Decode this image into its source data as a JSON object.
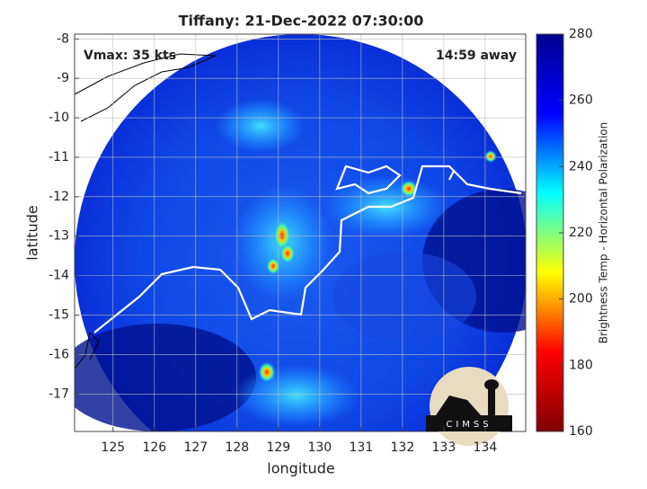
{
  "chart_data": {
    "type": "map",
    "title": "Tiffany: 21-Dec-2022 07:30:00",
    "x_label": "longitude",
    "y_label": "latitude",
    "xlim": [
      124.07,
      134.98
    ],
    "xticks": [
      125,
      126,
      127,
      128,
      129,
      130,
      131,
      132,
      133,
      134
    ],
    "ylim": [
      -17.95,
      -7.88
    ],
    "yticks": [
      -8,
      -9,
      -10,
      -11,
      -12,
      -13,
      -14,
      -15,
      -16,
      -17
    ],
    "grid": true,
    "annotations": [
      "Vmax: 35 kts",
      "14:59 away"
    ],
    "logo": "CIMSS",
    "colorbar": {
      "label": "Brightness Temp - Horizontal Polarization",
      "lim": [
        160,
        280
      ],
      "ticks": [
        160,
        180,
        200,
        220,
        240,
        260,
        280
      ],
      "colors": [
        "#800000",
        "#ff0000",
        "#ffff00",
        "#00ffff",
        "#0000ff",
        "#00008f"
      ]
    }
  }
}
